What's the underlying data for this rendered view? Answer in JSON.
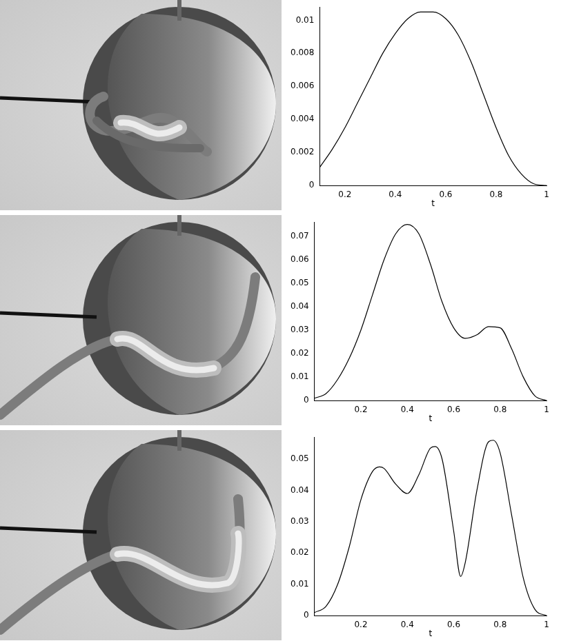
{
  "chart_data": [
    {
      "type": "line",
      "x_label": "t",
      "xlim": [
        0.1,
        1
      ],
      "xticks": [
        0.2,
        0.4,
        0.6,
        0.8,
        1
      ],
      "ylim": [
        0,
        0.0108
      ],
      "yticks": [
        0,
        0.002,
        0.004,
        0.006,
        0.008,
        0.01
      ],
      "grid": false,
      "color": "#000000",
      "x": [
        0.1,
        0.15,
        0.2,
        0.25,
        0.3,
        0.35,
        0.4,
        0.45,
        0.5,
        0.55,
        0.6,
        0.65,
        0.7,
        0.75,
        0.8,
        0.85,
        0.9,
        0.95,
        1
      ],
      "values": [
        0.0011,
        0.0022,
        0.0035,
        0.005,
        0.0065,
        0.008,
        0.0092,
        0.0101,
        0.0105,
        0.0105,
        0.0101,
        0.0091,
        0.0075,
        0.0055,
        0.0035,
        0.0018,
        0.0007,
        0.0001,
        0
      ]
    },
    {
      "type": "line",
      "x_label": "t",
      "xlim": [
        0,
        1
      ],
      "xticks": [
        0.2,
        0.4,
        0.6,
        0.8,
        1
      ],
      "ylim": [
        0,
        0.076
      ],
      "yticks": [
        0,
        0.01,
        0.02,
        0.03,
        0.04,
        0.05,
        0.06,
        0.07
      ],
      "grid": false,
      "color": "#000000",
      "x": [
        0,
        0.05,
        0.1,
        0.15,
        0.2,
        0.25,
        0.3,
        0.35,
        0.4,
        0.45,
        0.5,
        0.55,
        0.6,
        0.65,
        0.7,
        0.75,
        0.8,
        0.85,
        0.9,
        0.95,
        1
      ],
      "values": [
        0.001,
        0.003,
        0.009,
        0.018,
        0.03,
        0.045,
        0.06,
        0.071,
        0.075,
        0.071,
        0.058,
        0.042,
        0.031,
        0.0265,
        0.028,
        0.0315,
        0.031,
        0.022,
        0.01,
        0.002,
        0
      ]
    },
    {
      "type": "line",
      "x_label": "t",
      "xlim": [
        0,
        1
      ],
      "xticks": [
        0.2,
        0.4,
        0.6,
        0.8,
        1
      ],
      "ylim": [
        0,
        0.057
      ],
      "yticks": [
        0,
        0.01,
        0.02,
        0.03,
        0.04,
        0.05
      ],
      "grid": false,
      "color": "#000000",
      "x": [
        0,
        0.05,
        0.1,
        0.15,
        0.2,
        0.25,
        0.28,
        0.3,
        0.35,
        0.4,
        0.45,
        0.5,
        0.52,
        0.55,
        0.6,
        0.63,
        0.65,
        0.7,
        0.75,
        0.77,
        0.8,
        0.85,
        0.9,
        0.95,
        1
      ],
      "values": [
        0.001,
        0.003,
        0.01,
        0.022,
        0.037,
        0.046,
        0.0475,
        0.047,
        0.042,
        0.039,
        0.045,
        0.0535,
        0.054,
        0.05,
        0.027,
        0.0125,
        0.017,
        0.04,
        0.0555,
        0.056,
        0.052,
        0.032,
        0.012,
        0.002,
        0
      ]
    }
  ]
}
